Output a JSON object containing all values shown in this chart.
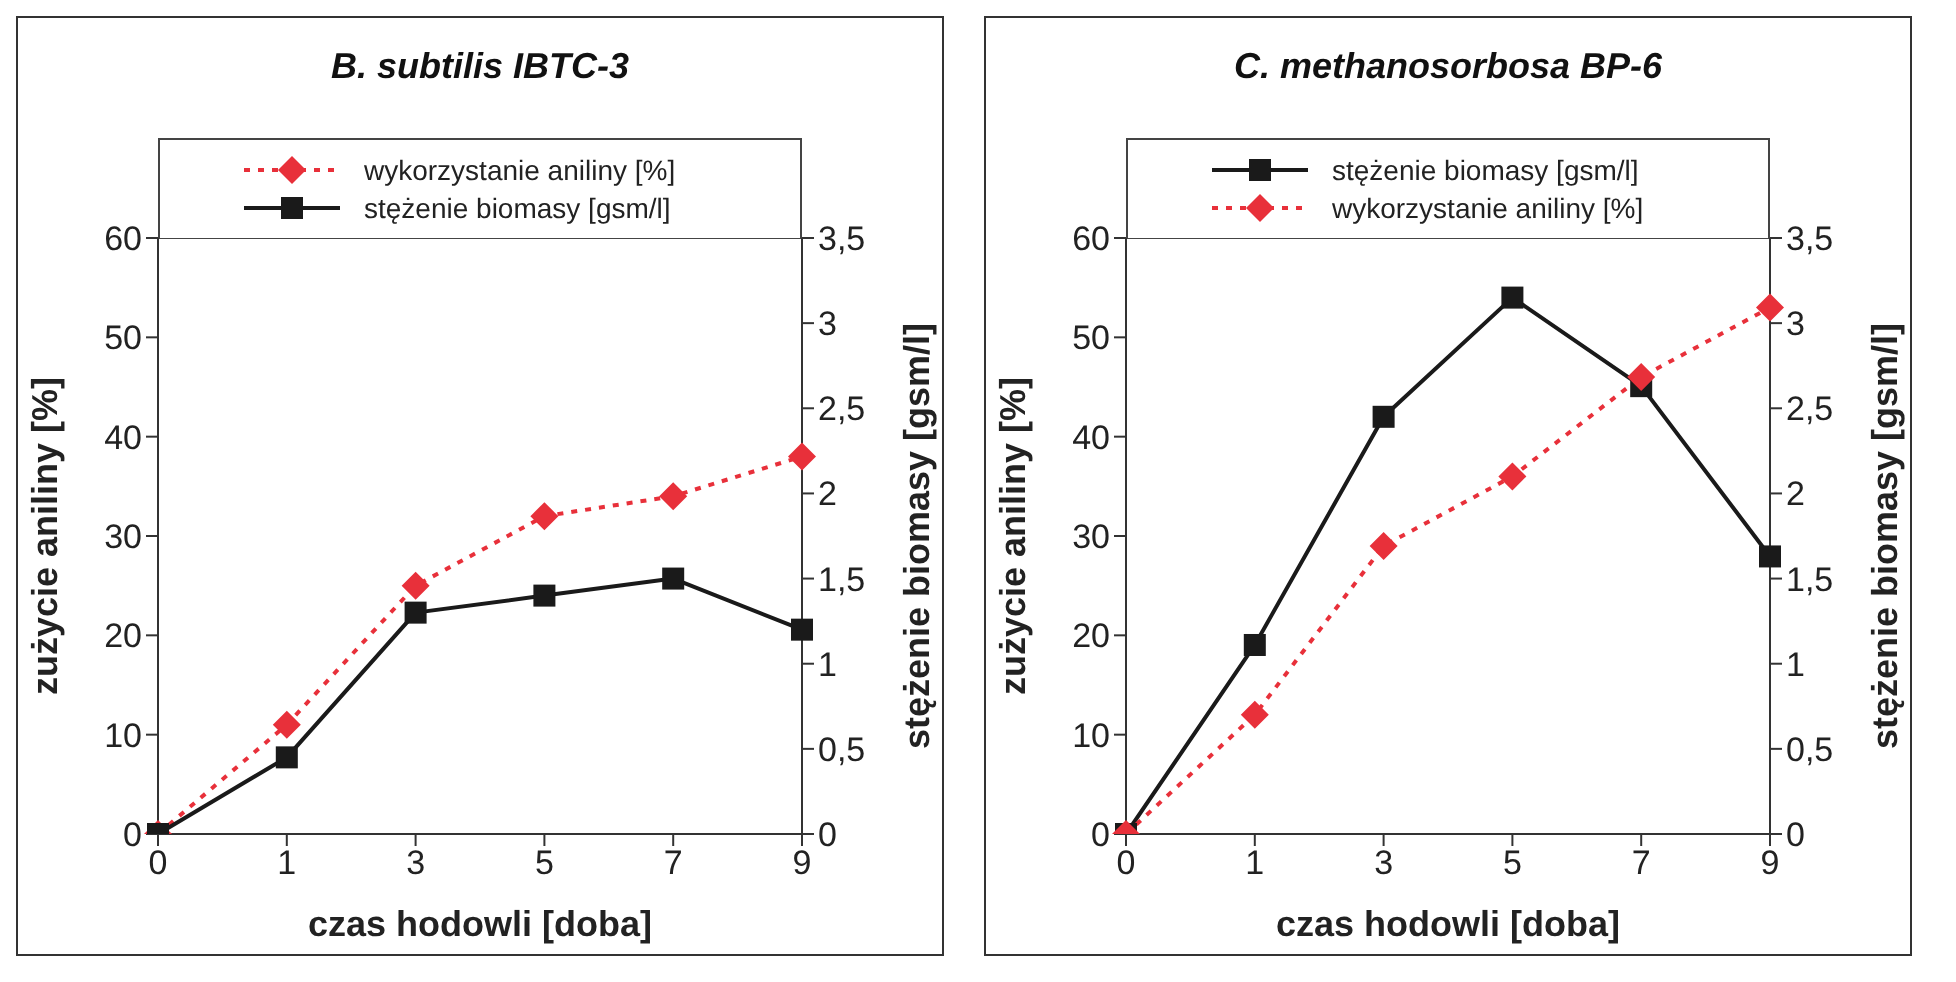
{
  "chart_data": [
    {
      "type": "line",
      "title": "B. subtilis IBTC-3",
      "xlabel": "czas hodowli [doba]",
      "ylabel": "zużycie aniliny [%]",
      "y2label": "stężenie biomasy [gsm/l]",
      "categories": [
        "0",
        "1",
        "3",
        "5",
        "7",
        "9"
      ],
      "series": [
        {
          "name": "wykorzystanie aniliny [%]",
          "color": "#e8303a",
          "values": [
            0,
            11,
            25,
            32,
            34,
            38
          ],
          "marker": "diamond",
          "line_style": "dotted"
        },
        {
          "name": "stężenie biomasy [gsm/l]",
          "color": "#1a1a1a",
          "values": [
            0,
            0.45,
            1.3,
            1.4,
            1.5,
            1.2
          ],
          "axis": "y2",
          "marker": "square",
          "line_style": "solid"
        }
      ],
      "ylim": [
        0,
        60
      ],
      "yticks": [
        0,
        10,
        20,
        30,
        40,
        50,
        60
      ],
      "y2lim": [
        0,
        3.5
      ],
      "y2ticks": [
        0,
        {
          "value": 0.5,
          "label": "0,5"
        },
        1,
        {
          "value": 1.5,
          "label": "1,5"
        },
        2,
        {
          "value": 2.5,
          "label": "2,5"
        },
        3,
        {
          "value": 3.5,
          "label": "3,5"
        }
      ],
      "legend": "top",
      "grid": false
    },
    {
      "type": "line",
      "title": "C. methanosorbosa BP-6",
      "xlabel": "czas hodowli [doba]",
      "ylabel": "zużycie aniliny [%]",
      "y2label": "stężenie biomasy [gsm/l]",
      "categories": [
        "0",
        "1",
        "3",
        "5",
        "7",
        "9"
      ],
      "series": [
        {
          "name": "stężenie biomasy [gsm/l]",
          "color": "#1a1a1a",
          "values": [
            0,
            1.11,
            2.45,
            3.15,
            2.63,
            1.63
          ],
          "axis": "y2",
          "marker": "square",
          "line_style": "solid"
        },
        {
          "name": "wykorzystanie aniliny [%]",
          "color": "#e8303a",
          "values": [
            0,
            12,
            29,
            36,
            46,
            53
          ],
          "marker": "diamond",
          "line_style": "dotted"
        }
      ],
      "ylim": [
        0,
        60
      ],
      "yticks": [
        0,
        10,
        20,
        30,
        40,
        50,
        60
      ],
      "y2lim": [
        0,
        3.5
      ],
      "y2ticks": [
        0,
        {
          "value": 0.5,
          "label": "0,5"
        },
        1,
        {
          "value": 1.5,
          "label": "1,5"
        },
        2,
        {
          "value": 2.5,
          "label": "2,5"
        },
        3,
        {
          "value": 3.5,
          "label": "3,5"
        }
      ],
      "legend": "top",
      "grid": false
    }
  ]
}
